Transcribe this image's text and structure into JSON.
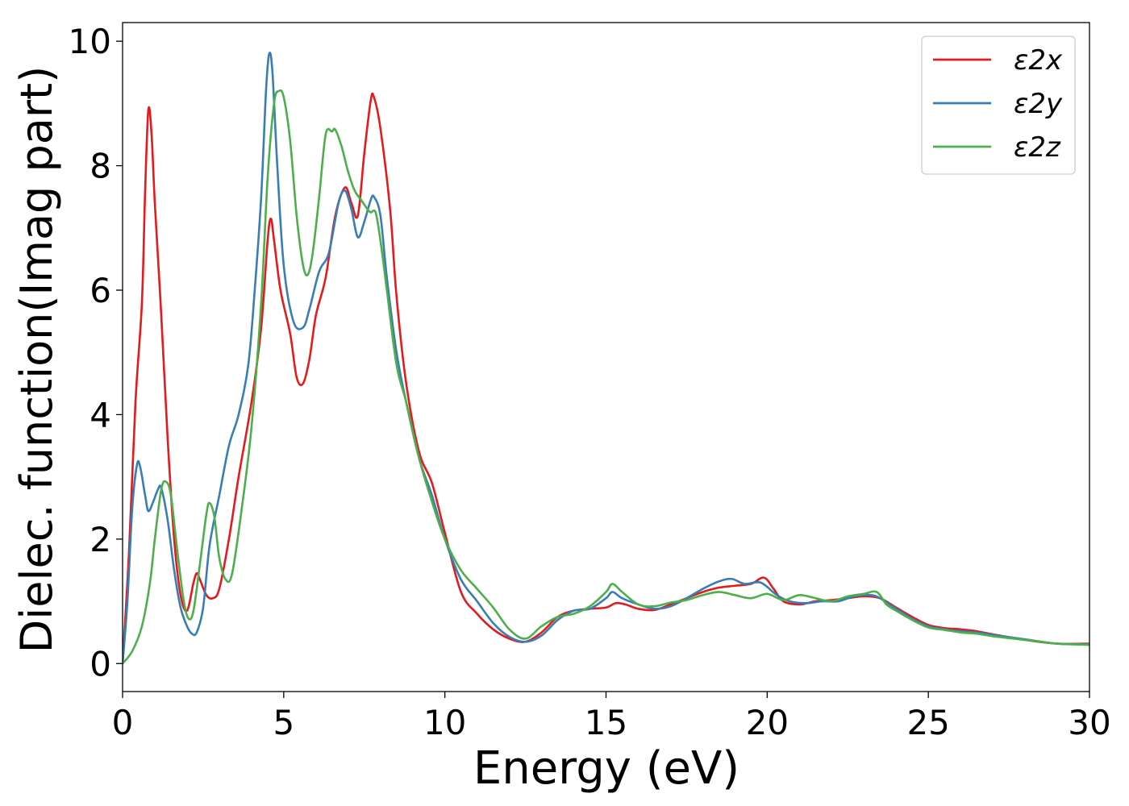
{
  "chart_data": {
    "type": "line",
    "title": "",
    "xlabel": "Energy (eV)",
    "ylabel": "Dielec. function(Imag part)",
    "xlim": [
      0,
      30
    ],
    "ylim": [
      -0.45,
      10.3
    ],
    "xticks": [
      0,
      5,
      10,
      15,
      20,
      25,
      30
    ],
    "yticks": [
      0,
      2,
      4,
      6,
      8,
      10
    ],
    "grid": false,
    "legend_position": "top-right",
    "series": [
      {
        "name": "ε2x",
        "color": "#e41a1c",
        "points": [
          [
            0,
            0
          ],
          [
            0.2,
            1.8
          ],
          [
            0.4,
            4.2
          ],
          [
            0.6,
            5.8
          ],
          [
            0.7,
            7.6
          ],
          [
            0.8,
            8.9
          ],
          [
            0.9,
            8.5
          ],
          [
            1.0,
            7.4
          ],
          [
            1.2,
            5.6
          ],
          [
            1.4,
            3.6
          ],
          [
            1.6,
            2.0
          ],
          [
            1.8,
            1.1
          ],
          [
            2.0,
            0.85
          ],
          [
            2.2,
            1.3
          ],
          [
            2.3,
            1.45
          ],
          [
            2.4,
            1.35
          ],
          [
            2.6,
            1.1
          ],
          [
            2.8,
            1.05
          ],
          [
            3.0,
            1.2
          ],
          [
            3.3,
            2.0
          ],
          [
            3.6,
            3.0
          ],
          [
            4.0,
            4.2
          ],
          [
            4.3,
            5.4
          ],
          [
            4.5,
            6.8
          ],
          [
            4.6,
            7.15
          ],
          [
            4.7,
            6.8
          ],
          [
            4.9,
            6.0
          ],
          [
            5.2,
            5.3
          ],
          [
            5.4,
            4.6
          ],
          [
            5.6,
            4.5
          ],
          [
            5.8,
            4.9
          ],
          [
            6.0,
            5.6
          ],
          [
            6.3,
            6.2
          ],
          [
            6.6,
            7.2
          ],
          [
            6.9,
            7.65
          ],
          [
            7.1,
            7.4
          ],
          [
            7.3,
            7.2
          ],
          [
            7.5,
            8.2
          ],
          [
            7.7,
            9.05
          ],
          [
            7.8,
            9.1
          ],
          [
            8.0,
            8.6
          ],
          [
            8.3,
            7.3
          ],
          [
            8.5,
            5.9
          ],
          [
            8.8,
            4.5
          ],
          [
            9.2,
            3.4
          ],
          [
            9.6,
            2.9
          ],
          [
            10.0,
            2.1
          ],
          [
            10.5,
            1.15
          ],
          [
            11.0,
            0.8
          ],
          [
            11.5,
            0.55
          ],
          [
            12.0,
            0.4
          ],
          [
            12.5,
            0.35
          ],
          [
            13.0,
            0.5
          ],
          [
            13.5,
            0.75
          ],
          [
            14.0,
            0.85
          ],
          [
            14.5,
            0.88
          ],
          [
            15.0,
            0.9
          ],
          [
            15.3,
            0.97
          ],
          [
            15.6,
            0.95
          ],
          [
            16.0,
            0.88
          ],
          [
            16.5,
            0.86
          ],
          [
            17.0,
            0.95
          ],
          [
            17.5,
            1.05
          ],
          [
            18.0,
            1.15
          ],
          [
            18.5,
            1.22
          ],
          [
            19.0,
            1.25
          ],
          [
            19.5,
            1.28
          ],
          [
            19.9,
            1.38
          ],
          [
            20.2,
            1.2
          ],
          [
            20.5,
            1.0
          ],
          [
            21.0,
            0.95
          ],
          [
            21.5,
            1.0
          ],
          [
            22.0,
            1.02
          ],
          [
            22.5,
            1.05
          ],
          [
            23.0,
            1.08
          ],
          [
            23.5,
            1.05
          ],
          [
            24.0,
            0.9
          ],
          [
            24.5,
            0.75
          ],
          [
            25.0,
            0.62
          ],
          [
            25.5,
            0.57
          ],
          [
            26.0,
            0.55
          ],
          [
            26.5,
            0.52
          ],
          [
            27.0,
            0.47
          ],
          [
            28.0,
            0.38
          ],
          [
            29.0,
            0.32
          ],
          [
            30.0,
            0.32
          ]
        ]
      },
      {
        "name": "ε2y",
        "color": "#377eb8",
        "points": [
          [
            0,
            0
          ],
          [
            0.15,
            1.0
          ],
          [
            0.3,
            2.5
          ],
          [
            0.45,
            3.2
          ],
          [
            0.55,
            3.15
          ],
          [
            0.7,
            2.7
          ],
          [
            0.8,
            2.45
          ],
          [
            0.95,
            2.6
          ],
          [
            1.1,
            2.8
          ],
          [
            1.2,
            2.82
          ],
          [
            1.4,
            2.3
          ],
          [
            1.6,
            1.5
          ],
          [
            1.8,
            0.9
          ],
          [
            2.0,
            0.6
          ],
          [
            2.15,
            0.48
          ],
          [
            2.3,
            0.5
          ],
          [
            2.5,
            0.9
          ],
          [
            2.7,
            1.9
          ],
          [
            3.0,
            2.7
          ],
          [
            3.3,
            3.5
          ],
          [
            3.6,
            4.0
          ],
          [
            3.9,
            4.8
          ],
          [
            4.1,
            6.0
          ],
          [
            4.3,
            7.5
          ],
          [
            4.45,
            9.2
          ],
          [
            4.55,
            9.8
          ],
          [
            4.65,
            9.5
          ],
          [
            4.8,
            8.0
          ],
          [
            5.0,
            6.4
          ],
          [
            5.3,
            5.5
          ],
          [
            5.6,
            5.4
          ],
          [
            5.8,
            5.7
          ],
          [
            6.1,
            6.3
          ],
          [
            6.4,
            6.6
          ],
          [
            6.7,
            7.4
          ],
          [
            6.9,
            7.6
          ],
          [
            7.1,
            7.3
          ],
          [
            7.3,
            6.85
          ],
          [
            7.5,
            7.1
          ],
          [
            7.7,
            7.45
          ],
          [
            7.8,
            7.5
          ],
          [
            8.0,
            7.2
          ],
          [
            8.2,
            6.2
          ],
          [
            8.5,
            5.0
          ],
          [
            8.8,
            4.2
          ],
          [
            9.2,
            3.3
          ],
          [
            9.6,
            2.7
          ],
          [
            10.0,
            2.0
          ],
          [
            10.5,
            1.35
          ],
          [
            11.0,
            1.0
          ],
          [
            11.5,
            0.65
          ],
          [
            12.0,
            0.43
          ],
          [
            12.5,
            0.35
          ],
          [
            13.0,
            0.45
          ],
          [
            13.5,
            0.7
          ],
          [
            14.0,
            0.85
          ],
          [
            14.5,
            0.88
          ],
          [
            15.0,
            1.05
          ],
          [
            15.2,
            1.15
          ],
          [
            15.5,
            1.05
          ],
          [
            16.0,
            0.95
          ],
          [
            16.5,
            0.88
          ],
          [
            17.0,
            0.92
          ],
          [
            17.5,
            1.05
          ],
          [
            18.0,
            1.2
          ],
          [
            18.5,
            1.32
          ],
          [
            18.9,
            1.36
          ],
          [
            19.3,
            1.28
          ],
          [
            19.8,
            1.3
          ],
          [
            20.3,
            1.1
          ],
          [
            20.7,
            1.0
          ],
          [
            21.2,
            0.97
          ],
          [
            21.7,
            1.0
          ],
          [
            22.2,
            1.0
          ],
          [
            22.7,
            1.08
          ],
          [
            23.2,
            1.1
          ],
          [
            23.5,
            1.05
          ],
          [
            24.0,
            0.88
          ],
          [
            24.5,
            0.72
          ],
          [
            25.0,
            0.6
          ],
          [
            25.5,
            0.55
          ],
          [
            26.0,
            0.52
          ],
          [
            26.5,
            0.5
          ],
          [
            27.0,
            0.46
          ],
          [
            28.0,
            0.39
          ],
          [
            29.0,
            0.32
          ],
          [
            30.0,
            0.31
          ]
        ]
      },
      {
        "name": "ε2z",
        "color": "#4daf4a",
        "points": [
          [
            0,
            0
          ],
          [
            0.3,
            0.2
          ],
          [
            0.6,
            0.6
          ],
          [
            0.85,
            1.3
          ],
          [
            1.0,
            2.0
          ],
          [
            1.2,
            2.8
          ],
          [
            1.35,
            2.92
          ],
          [
            1.5,
            2.7
          ],
          [
            1.7,
            1.8
          ],
          [
            1.9,
            1.0
          ],
          [
            2.05,
            0.72
          ],
          [
            2.2,
            0.85
          ],
          [
            2.4,
            1.6
          ],
          [
            2.6,
            2.4
          ],
          [
            2.7,
            2.58
          ],
          [
            2.85,
            2.35
          ],
          [
            3.0,
            1.7
          ],
          [
            3.2,
            1.35
          ],
          [
            3.4,
            1.45
          ],
          [
            3.7,
            2.5
          ],
          [
            4.0,
            3.8
          ],
          [
            4.3,
            5.8
          ],
          [
            4.5,
            7.8
          ],
          [
            4.7,
            9.0
          ],
          [
            4.85,
            9.2
          ],
          [
            5.0,
            9.1
          ],
          [
            5.2,
            8.4
          ],
          [
            5.4,
            7.2
          ],
          [
            5.6,
            6.4
          ],
          [
            5.75,
            6.25
          ],
          [
            5.9,
            6.6
          ],
          [
            6.1,
            7.5
          ],
          [
            6.3,
            8.5
          ],
          [
            6.5,
            8.55
          ],
          [
            6.6,
            8.58
          ],
          [
            6.8,
            8.3
          ],
          [
            7.0,
            7.9
          ],
          [
            7.2,
            7.6
          ],
          [
            7.4,
            7.45
          ],
          [
            7.6,
            7.3
          ],
          [
            7.7,
            7.25
          ],
          [
            7.85,
            7.25
          ],
          [
            8.0,
            6.8
          ],
          [
            8.2,
            6.0
          ],
          [
            8.5,
            4.8
          ],
          [
            8.8,
            4.2
          ],
          [
            9.2,
            3.3
          ],
          [
            9.6,
            2.6
          ],
          [
            10.0,
            2.0
          ],
          [
            10.5,
            1.5
          ],
          [
            11.0,
            1.2
          ],
          [
            11.5,
            0.9
          ],
          [
            12.0,
            0.55
          ],
          [
            12.5,
            0.4
          ],
          [
            13.0,
            0.6
          ],
          [
            13.5,
            0.75
          ],
          [
            14.0,
            0.8
          ],
          [
            14.5,
            0.92
          ],
          [
            15.0,
            1.15
          ],
          [
            15.2,
            1.28
          ],
          [
            15.5,
            1.15
          ],
          [
            16.0,
            0.95
          ],
          [
            16.5,
            0.92
          ],
          [
            17.0,
            0.98
          ],
          [
            17.5,
            1.02
          ],
          [
            18.0,
            1.1
          ],
          [
            18.5,
            1.15
          ],
          [
            19.0,
            1.1
          ],
          [
            19.5,
            1.05
          ],
          [
            20.0,
            1.12
          ],
          [
            20.5,
            1.02
          ],
          [
            21.0,
            1.1
          ],
          [
            21.5,
            1.05
          ],
          [
            22.0,
            1.0
          ],
          [
            22.5,
            1.08
          ],
          [
            23.0,
            1.12
          ],
          [
            23.4,
            1.15
          ],
          [
            23.7,
            0.95
          ],
          [
            24.0,
            0.85
          ],
          [
            24.5,
            0.7
          ],
          [
            25.0,
            0.58
          ],
          [
            25.5,
            0.54
          ],
          [
            26.0,
            0.5
          ],
          [
            26.5,
            0.48
          ],
          [
            27.0,
            0.44
          ],
          [
            28.0,
            0.38
          ],
          [
            29.0,
            0.32
          ],
          [
            30.0,
            0.3
          ]
        ]
      }
    ]
  }
}
